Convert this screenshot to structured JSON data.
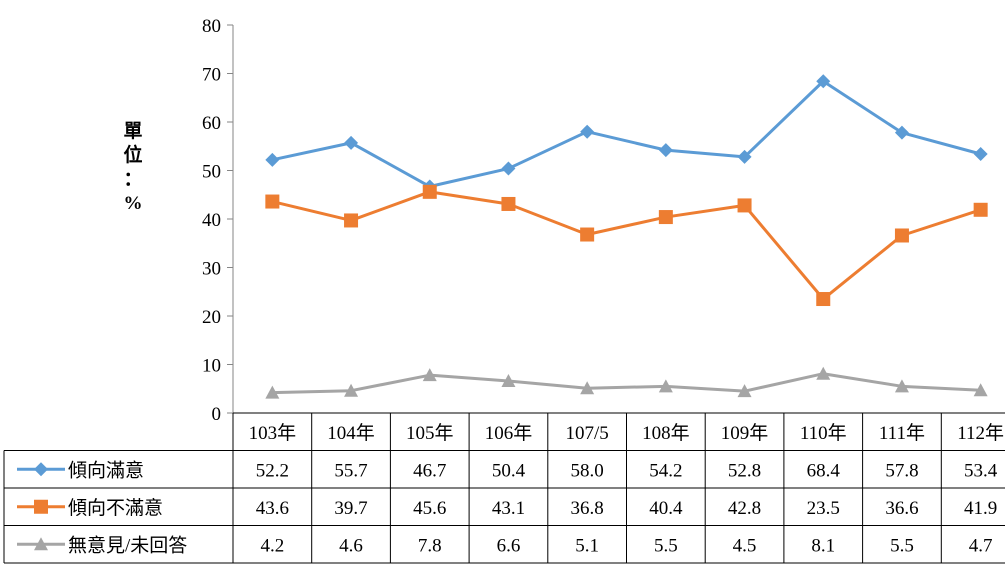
{
  "chart_data": {
    "type": "line",
    "categories": [
      "103年",
      "104年",
      "105年",
      "106年",
      "107/5",
      "108年",
      "109年",
      "110年",
      "111年",
      "112年"
    ],
    "series": [
      {
        "name": "傾向滿意",
        "values": [
          52.2,
          55.7,
          46.7,
          50.4,
          58.0,
          54.2,
          52.8,
          68.4,
          57.8,
          53.4
        ],
        "color": "#5B9BD5",
        "marker": "diamond"
      },
      {
        "name": "傾向不滿意",
        "values": [
          43.6,
          39.7,
          45.6,
          43.1,
          36.8,
          40.4,
          42.8,
          23.5,
          36.6,
          41.9
        ],
        "color": "#ED7D31",
        "marker": "square"
      },
      {
        "name": "無意見/未回答",
        "values": [
          4.2,
          4.6,
          7.8,
          6.6,
          5.1,
          5.5,
          4.5,
          8.1,
          5.5,
          4.7
        ],
        "color": "#A5A5A5",
        "marker": "triangle"
      }
    ],
    "ylabel_chars": [
      "單",
      "位",
      "：",
      "%"
    ],
    "ylim": [
      0,
      80
    ],
    "yticks": [
      0,
      10,
      20,
      30,
      40,
      50,
      60,
      70,
      80
    ],
    "grid": false,
    "legend": "data-table",
    "value_format": "one-decimal"
  }
}
